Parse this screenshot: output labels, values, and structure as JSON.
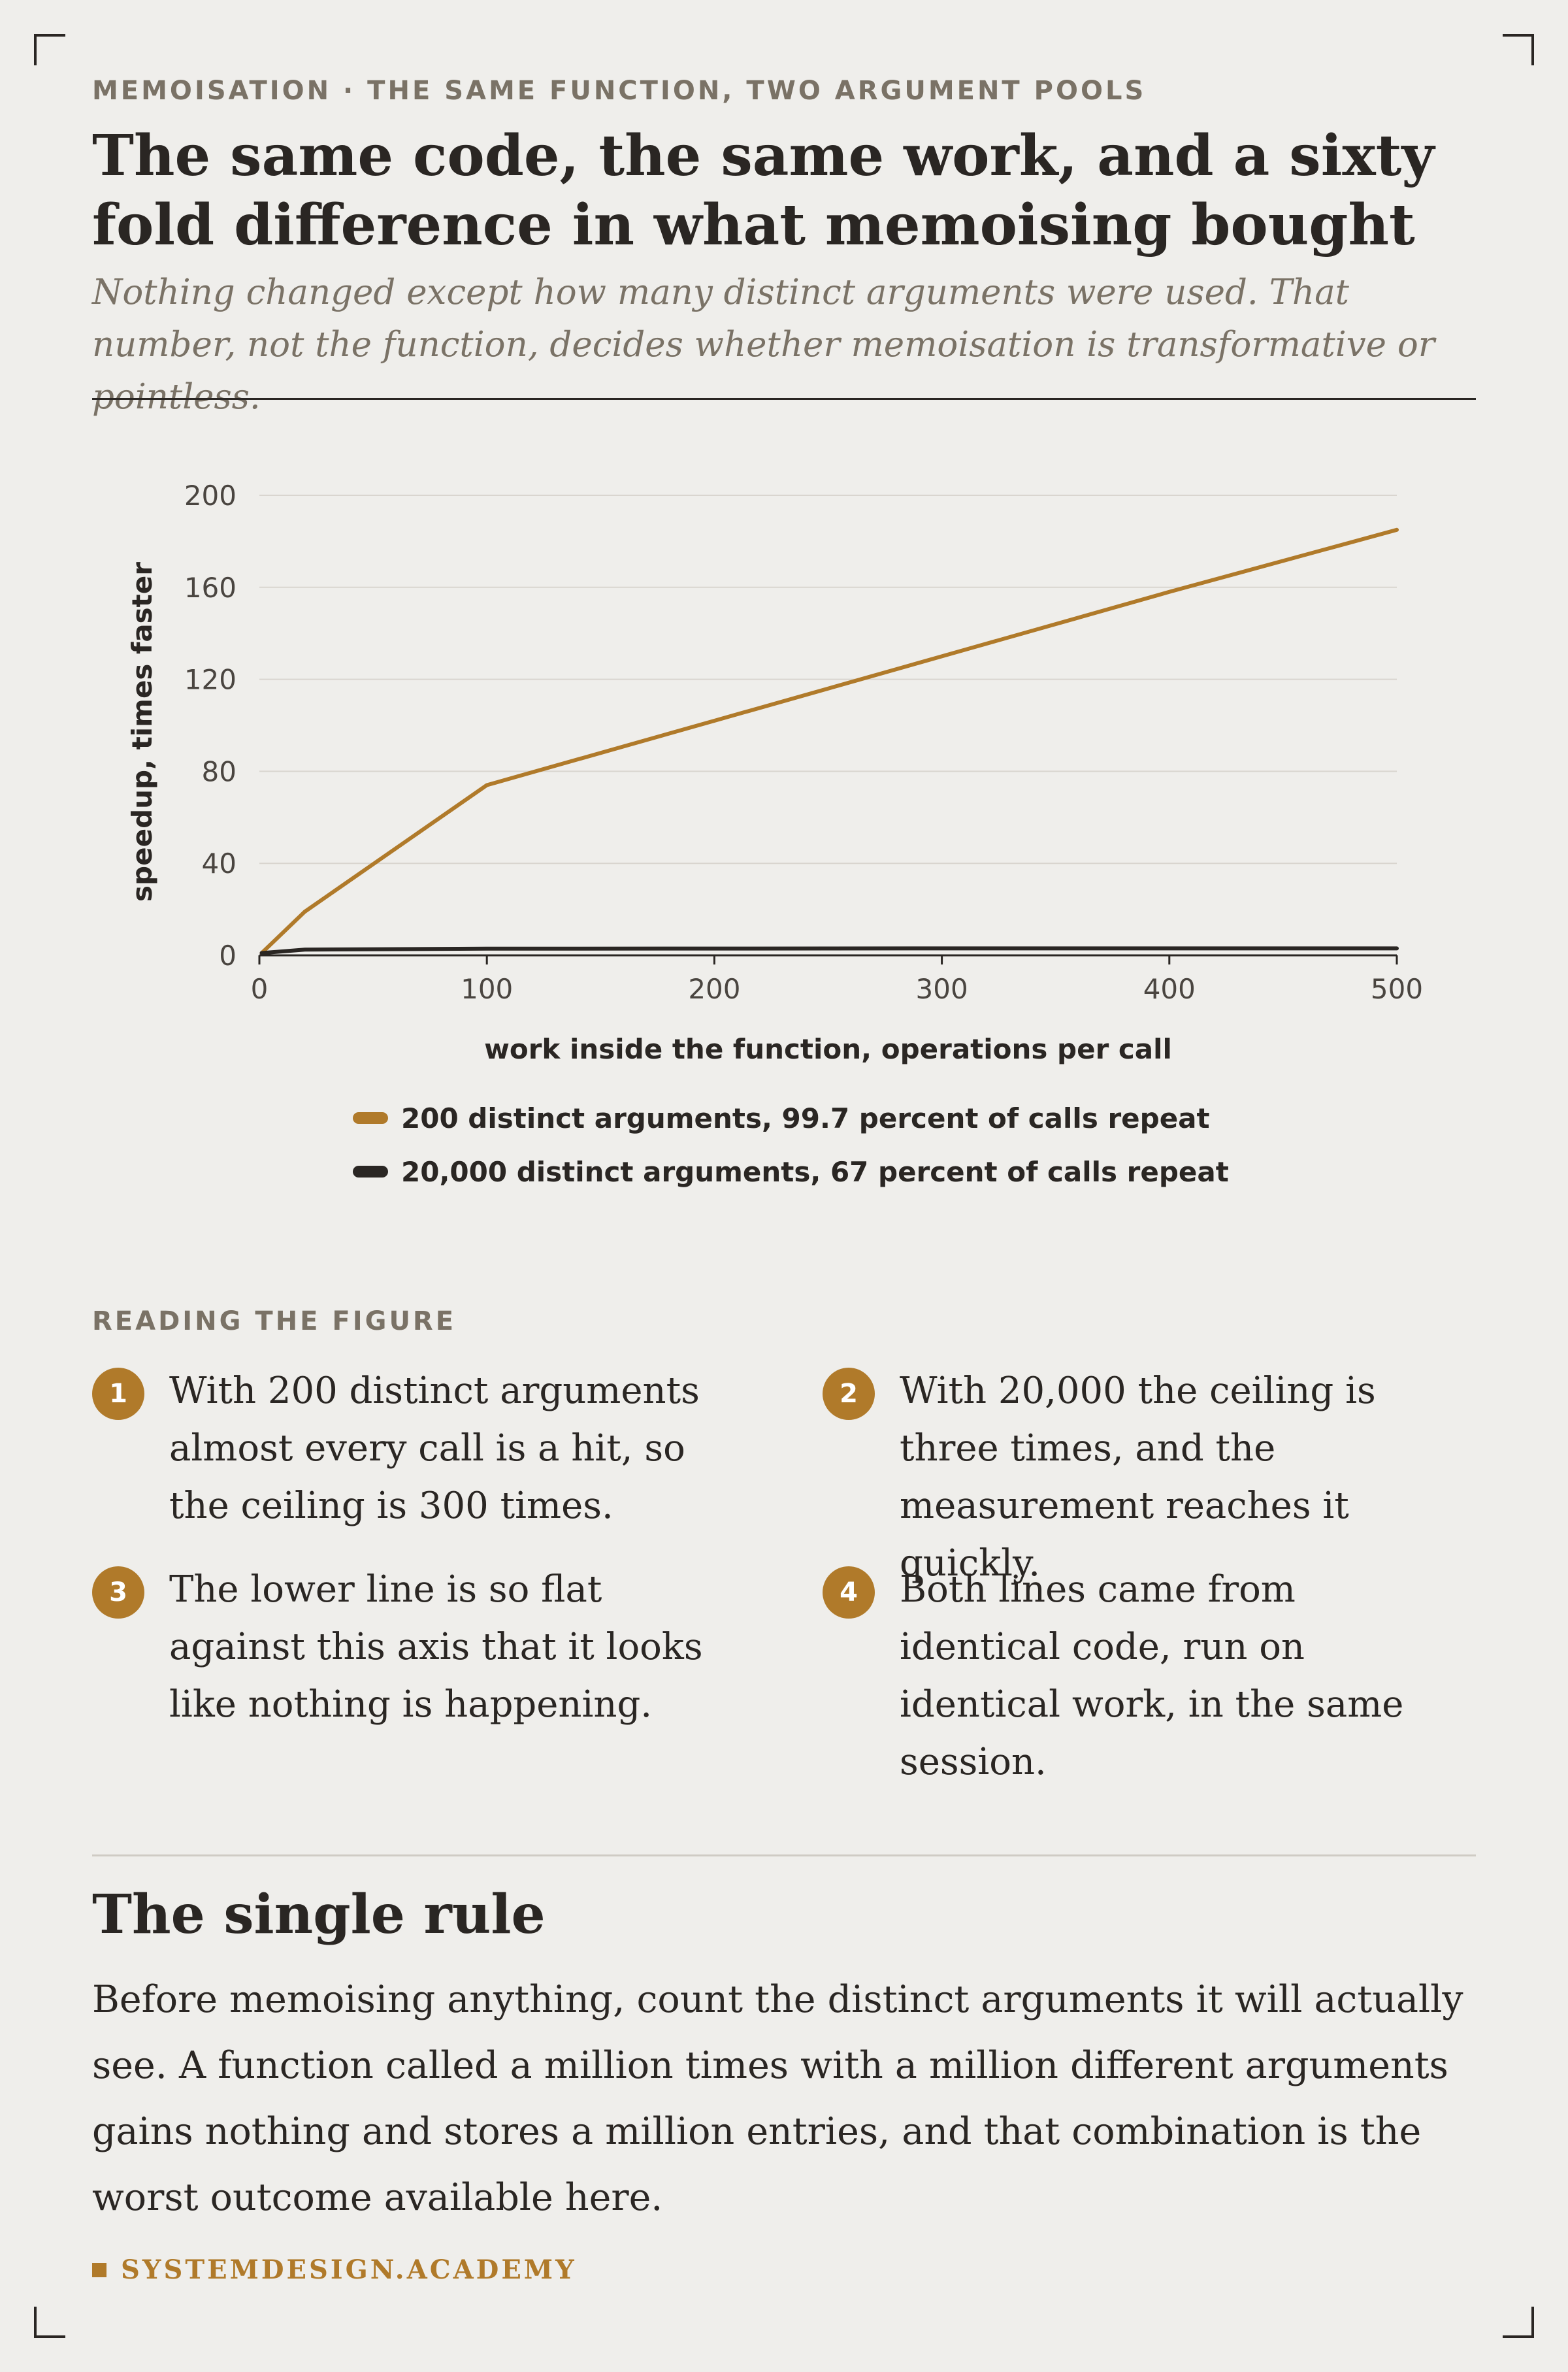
{
  "eyebrow": "MEMOISATION · THE SAME FUNCTION, TWO ARGUMENT POOLS",
  "headline": "The same code, the same work, and a sixty fold difference in what memoising bought",
  "dek": "Nothing changed except how many distinct arguments were used. That number, not the function, decides whether memoisation is transformative or pointless.",
  "chart_data": {
    "type": "line",
    "xlabel": "work inside the function, operations per call",
    "ylabel": "speedup, times faster",
    "xlim": [
      0,
      500
    ],
    "ylim": [
      0,
      200
    ],
    "xticks": [
      0,
      100,
      200,
      300,
      400,
      500
    ],
    "yticks": [
      0,
      40,
      80,
      120,
      160,
      200
    ],
    "grid": "horizontal",
    "legend_position": "bottom",
    "series": [
      {
        "name": "200 distinct arguments, 99.7 percent of calls repeat",
        "color": "#b07a2a",
        "x": [
          1,
          20,
          100,
          200,
          300,
          400,
          500
        ],
        "y": [
          1,
          19,
          74,
          102,
          130,
          158,
          185
        ]
      },
      {
        "name": "20,000 distinct arguments, 67 percent of calls repeat",
        "color": "#2a2623",
        "x": [
          1,
          20,
          100,
          200,
          300,
          400,
          500
        ],
        "y": [
          1,
          2.5,
          2.9,
          2.95,
          3.0,
          3.0,
          3.0
        ]
      }
    ]
  },
  "notes": {
    "label": "READING THE FIGURE",
    "items": [
      {
        "num": "1",
        "text": "With 200 distinct arguments almost every call is a hit, so the ceiling is 300 times."
      },
      {
        "num": "2",
        "text": "With 20,000 the ceiling is three times, and the measurement reaches it quickly."
      },
      {
        "num": "3",
        "text": "The lower line is so flat against this axis that it looks like nothing is happening."
      },
      {
        "num": "4",
        "text": "Both lines came from identical code, run on identical work, in the same session."
      }
    ]
  },
  "rule": {
    "heading": "The single rule",
    "body": "Before memoising anything, count the distinct arguments it will actually see. A function called a million times with a million different arguments gains nothing and stores a million entries, and that combination is the worst outcome available here."
  },
  "footer": "SYSTEMDESIGN.ACADEMY"
}
